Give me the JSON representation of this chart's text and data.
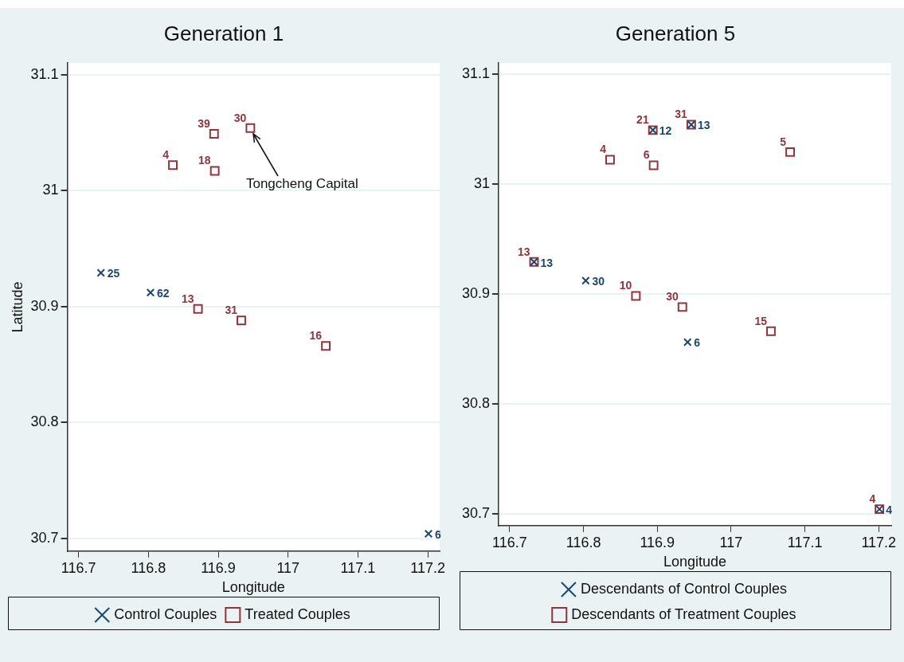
{
  "chart_data": [
    {
      "type": "scatter",
      "title": "Generation 1",
      "xlabel": "Longitude",
      "ylabel": "Latitude",
      "xlim": [
        116.684,
        117.217
      ],
      "xticks": [
        116.7,
        116.8,
        116.9,
        117,
        117.1,
        117.2
      ],
      "ylim": [
        30.689,
        31.11
      ],
      "yticks": [
        30.7,
        30.8,
        30.9,
        31,
        31.1
      ],
      "grid": "y",
      "legend": "bottom",
      "annotations": [
        {
          "text": "Tongcheng Capital",
          "x": 116.946,
          "y": 31.054
        },
        {
          "text": "25",
          "x": 116.732,
          "y": 30.929
        },
        {
          "text": "62",
          "x": 116.803,
          "y": 30.912
        },
        {
          "text": "6",
          "x": 117.201,
          "y": 30.704
        },
        {
          "text": "4",
          "x": 116.835,
          "y": 31.022
        },
        {
          "text": "39",
          "x": 116.894,
          "y": 31.049
        },
        {
          "text": "18",
          "x": 116.895,
          "y": 31.017
        },
        {
          "text": "30",
          "x": 116.946,
          "y": 31.054
        },
        {
          "text": "13",
          "x": 116.871,
          "y": 30.898
        },
        {
          "text": "31",
          "x": 116.933,
          "y": 30.888
        },
        {
          "text": "16",
          "x": 117.054,
          "y": 30.866
        }
      ],
      "series": [
        {
          "name": "Control Couples",
          "color": "#1a476f",
          "marker": "cross",
          "x": [
            116.732,
            116.803,
            117.201
          ],
          "values": [
            30.929,
            30.912,
            30.704
          ]
        },
        {
          "name": "Treated Couples",
          "color": "#90353b",
          "marker": "square",
          "x": [
            116.835,
            116.894,
            116.895,
            116.946,
            116.871,
            116.933,
            117.054
          ],
          "values": [
            31.022,
            31.049,
            31.017,
            31.054,
            30.898,
            30.888,
            30.866
          ]
        }
      ]
    },
    {
      "type": "scatter",
      "title": "Generation 5",
      "xlabel": "Longitude",
      "xlim": [
        116.685,
        117.217
      ],
      "xticks": [
        116.7,
        116.8,
        116.9,
        117,
        117.1,
        117.2
      ],
      "ylim": [
        30.689,
        31.11
      ],
      "yticks": [
        30.7,
        30.8,
        30.9,
        31,
        31.1
      ],
      "grid": "y",
      "legend": "bottom",
      "annotations": [
        {
          "text": "12",
          "x": 116.894,
          "y": 31.049
        },
        {
          "text": "13",
          "x": 116.946,
          "y": 31.054
        },
        {
          "text": "13",
          "x": 116.733,
          "y": 30.929
        },
        {
          "text": "30",
          "x": 116.803,
          "y": 30.912
        },
        {
          "text": "6",
          "x": 116.941,
          "y": 30.856
        },
        {
          "text": "4",
          "x": 117.201,
          "y": 30.704
        },
        {
          "text": "21",
          "x": 116.894,
          "y": 31.049
        },
        {
          "text": "31",
          "x": 116.946,
          "y": 31.054
        },
        {
          "text": "4",
          "x": 116.836,
          "y": 31.022
        },
        {
          "text": "6",
          "x": 116.895,
          "y": 31.017
        },
        {
          "text": "5",
          "x": 117.08,
          "y": 31.029
        },
        {
          "text": "13",
          "x": 116.733,
          "y": 30.929
        },
        {
          "text": "10",
          "x": 116.871,
          "y": 30.898
        },
        {
          "text": "30",
          "x": 116.934,
          "y": 30.888
        },
        {
          "text": "15",
          "x": 117.054,
          "y": 30.866
        },
        {
          "text": "4",
          "x": 117.201,
          "y": 30.704
        }
      ],
      "series": [
        {
          "name": "Descendants of Control Couples",
          "color": "#1a476f",
          "marker": "cross",
          "x": [
            116.894,
            116.946,
            116.733,
            116.803,
            116.941,
            117.201
          ],
          "values": [
            31.049,
            31.054,
            30.929,
            30.912,
            30.856,
            30.704
          ]
        },
        {
          "name": "Descendants of Treatment Couples",
          "color": "#90353b",
          "marker": "square",
          "x": [
            116.894,
            116.946,
            116.836,
            116.895,
            117.08,
            116.733,
            116.871,
            116.934,
            117.054,
            117.201
          ],
          "values": [
            31.049,
            31.054,
            31.022,
            31.017,
            31.029,
            30.929,
            30.898,
            30.888,
            30.866,
            30.704
          ]
        }
      ]
    }
  ]
}
